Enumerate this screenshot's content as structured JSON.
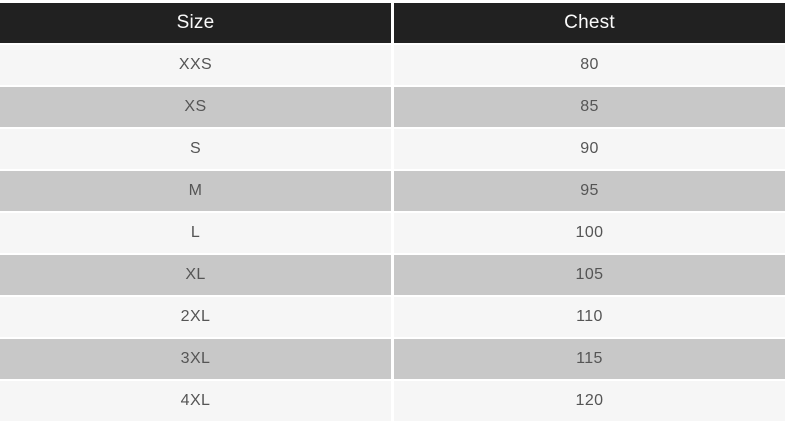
{
  "table": {
    "columns": [
      {
        "label": "Size"
      },
      {
        "label": "Chest"
      }
    ],
    "rows": [
      {
        "size": "XXS",
        "chest": "80"
      },
      {
        "size": "XS",
        "chest": "85"
      },
      {
        "size": "S",
        "chest": "90"
      },
      {
        "size": "M",
        "chest": "95"
      },
      {
        "size": "L",
        "chest": "100"
      },
      {
        "size": "XL",
        "chest": "105"
      },
      {
        "size": "2XL",
        "chest": "110"
      },
      {
        "size": "3XL",
        "chest": "115"
      },
      {
        "size": "4XL",
        "chest": "120"
      }
    ],
    "colors": {
      "header_bg": "#212121",
      "header_text": "#fafafa",
      "row_light_bg": "#f6f6f6",
      "row_dark_bg": "#c8c8c8",
      "cell_text": "#555555",
      "gutter": "#ffffff"
    }
  }
}
